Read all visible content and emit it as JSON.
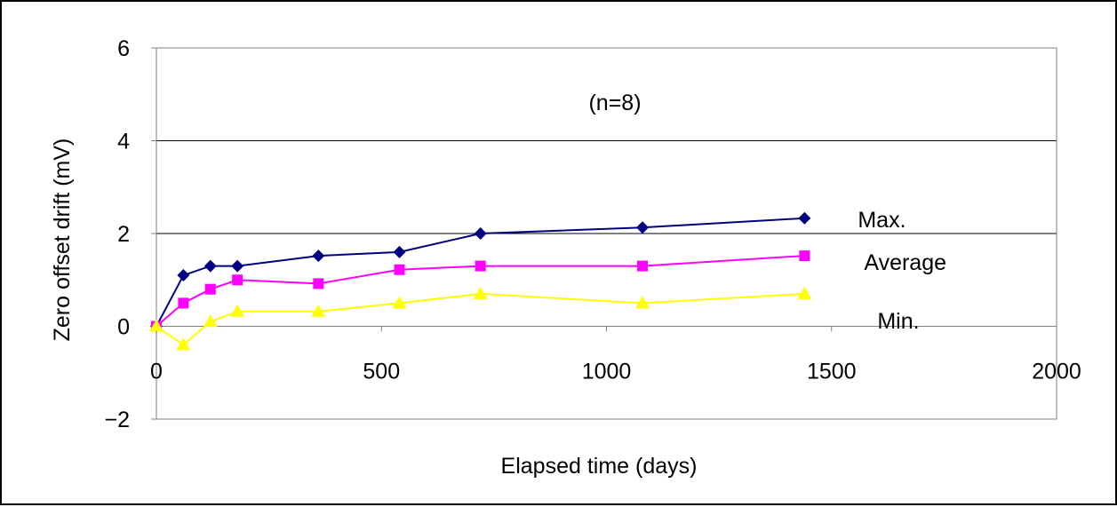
{
  "chart_data": {
    "type": "line",
    "xlabel": "Elapsed time (days)",
    "ylabel": "Zero offset drift (mV)",
    "annotation": "(n=8)",
    "xlim": [
      0,
      2000
    ],
    "ylim": [
      -2,
      6
    ],
    "xticks": [
      0,
      500,
      1000,
      1500,
      2000
    ],
    "yticks": [
      -2,
      0,
      2,
      4,
      6
    ],
    "ytick_labels": [
      "−2",
      "0",
      "2",
      "4",
      "6"
    ],
    "grid": "horizontal",
    "series": [
      {
        "name": "Max.",
        "color": "#000080",
        "marker": "diamond",
        "x": [
          0,
          60,
          120,
          180,
          360,
          540,
          720,
          1080,
          1440
        ],
        "y": [
          0,
          1.1,
          1.3,
          1.3,
          1.52,
          1.6,
          2.0,
          2.13,
          2.33
        ]
      },
      {
        "name": "Average",
        "color": "#ff00ff",
        "marker": "square",
        "x": [
          0,
          60,
          120,
          180,
          360,
          540,
          720,
          1080,
          1440
        ],
        "y": [
          0,
          0.5,
          0.8,
          1.0,
          0.92,
          1.22,
          1.3,
          1.3,
          1.52
        ]
      },
      {
        "name": "Min.",
        "color": "#ffff00",
        "marker": "triangle",
        "x": [
          0,
          60,
          120,
          180,
          360,
          540,
          720,
          1080,
          1440
        ],
        "y": [
          0,
          -0.4,
          0.1,
          0.32,
          0.32,
          0.5,
          0.7,
          0.5,
          0.7
        ]
      }
    ]
  }
}
